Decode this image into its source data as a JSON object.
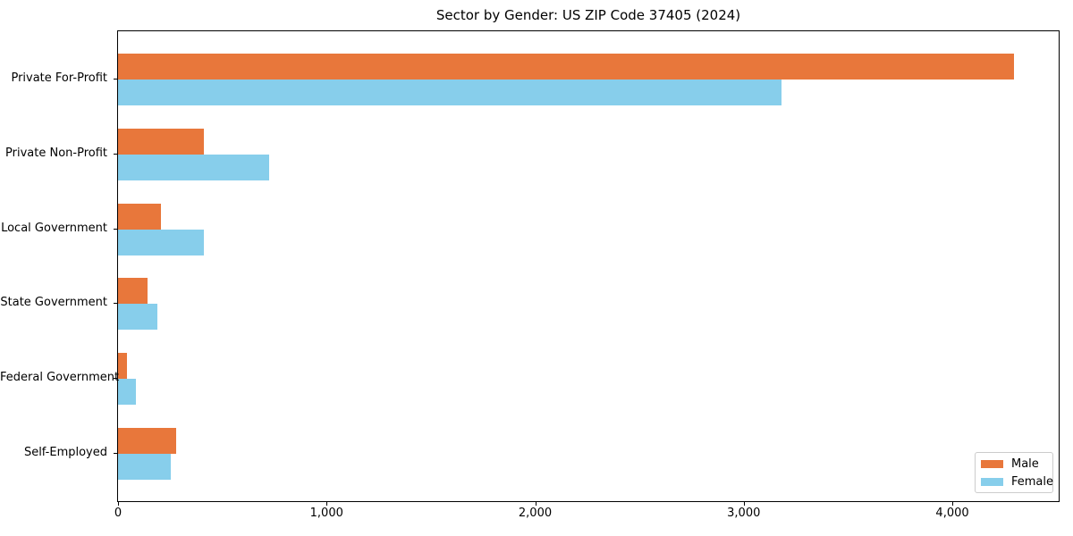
{
  "chart_data": {
    "type": "bar",
    "orientation": "horizontal",
    "title": "Sector by Gender: US ZIP Code 37405 (2024)",
    "categories": [
      "Private For-Profit",
      "Private Non-Profit",
      "Local Government",
      "State Government",
      "Federal Government",
      "Self-Employed"
    ],
    "series": [
      {
        "name": "Male",
        "color": "#E8773B",
        "values": [
          4295,
          410,
          205,
          140,
          45,
          280
        ]
      },
      {
        "name": "Female",
        "color": "#87CEEB",
        "values": [
          3180,
          725,
          410,
          190,
          87,
          255
        ]
      }
    ],
    "xlabel": "",
    "ylabel": "",
    "xlim": [
      0,
      4510
    ],
    "xticks": {
      "values": [
        0,
        1000,
        2000,
        3000,
        4000
      ],
      "labels": [
        "0",
        "1,000",
        "2,000",
        "3,000",
        "4,000"
      ]
    },
    "grid": false,
    "legend": {
      "position": "lower right"
    },
    "colors": {
      "background": "#FFFFFF",
      "spine": "#000000",
      "legend_border": "#CCCCCC"
    }
  }
}
